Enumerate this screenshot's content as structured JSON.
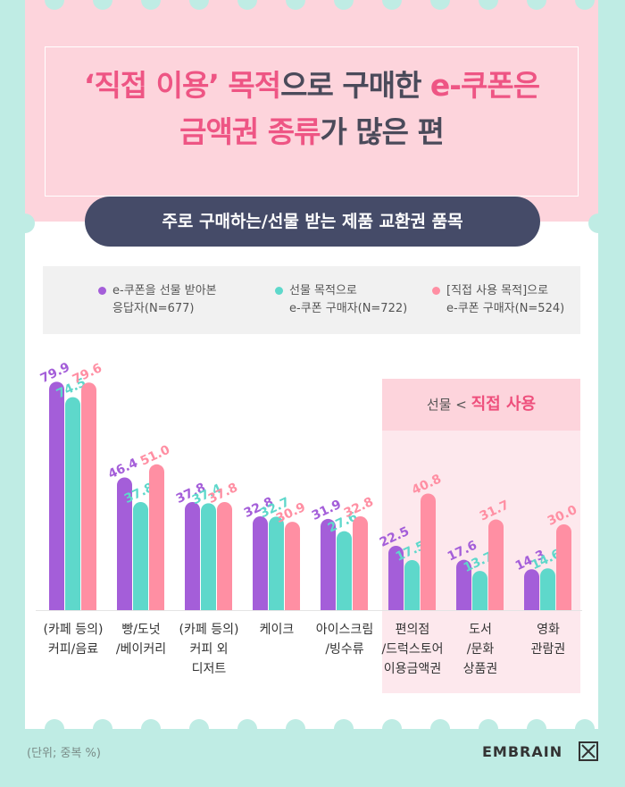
{
  "title": {
    "line1_hl1": "‘직접 이용’",
    "line1_mid": " 목적",
    "line1_rest": "으로 구매한 ",
    "line1_hl2": "e-쿠폰은",
    "line2_hl": "금액권 종류",
    "line2_rest": "가 많은 편"
  },
  "subtitle": "주로 구매하는/선물 받는 제품 교환권 품목",
  "legend": [
    {
      "line1": "e-쿠폰을 선물 받아본",
      "line2": "응답자(N=677)",
      "color": "#a45ed9"
    },
    {
      "line1": "선물 목적으로",
      "line2": "e-쿠폰 구매자(N=722)",
      "color": "#5ed8cb"
    },
    {
      "line1": "[직접 사용 목적]으로",
      "line2": "e-쿠폰 구매자(N=524)",
      "color": "#ff8fa3"
    }
  ],
  "highlight": {
    "left": "선물",
    "sep": " < ",
    "right": "직접 사용"
  },
  "chart_data": {
    "type": "bar",
    "categories": [
      "(카페 등의)\n커피/음료",
      "빵/도넛\n/베이커리",
      "(카페 등의)\n커피 외\n디저트",
      "케이크",
      "아이스크림\n/빙수류",
      "편의점\n/드럭스토어\n이용금액권",
      "도서\n/문화\n상품권",
      "영화\n관람권"
    ],
    "series": [
      {
        "name": "e-쿠폰을 선물 받아본 응답자(N=677)",
        "values": [
          79.9,
          46.4,
          37.8,
          32.8,
          31.9,
          22.5,
          17.6,
          14.3
        ],
        "color": "#a45ed9"
      },
      {
        "name": "선물 목적으로 e-쿠폰 구매자(N=722)",
        "values": [
          74.5,
          37.8,
          37.4,
          32.7,
          27.6,
          17.5,
          13.7,
          14.6
        ],
        "color": "#5ed8cb"
      },
      {
        "name": "[직접 사용 목적]으로 e-쿠폰 구매자(N=524)",
        "values": [
          79.6,
          51.0,
          37.8,
          30.9,
          32.8,
          40.8,
          31.7,
          30.0
        ],
        "color": "#ff8fa3"
      }
    ],
    "ylim": [
      0,
      100
    ]
  },
  "footer": {
    "note": "(단위; 중복 %)",
    "brand": "EMBRAIN"
  }
}
